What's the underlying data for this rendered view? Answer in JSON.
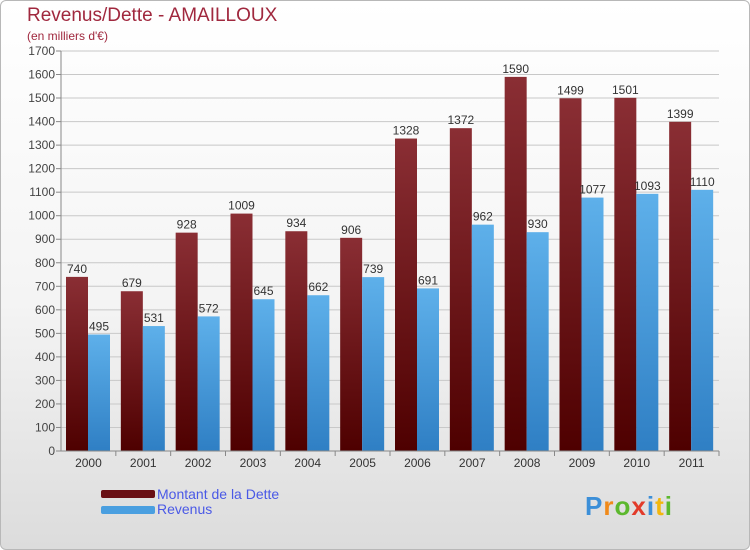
{
  "title": "Revenus/Dette - AMAILLOUX",
  "subtitle": "(en milliers d'€)",
  "legend": {
    "debt_label": "Montant de la Dette",
    "revenue_label": "Revenus"
  },
  "logo": {
    "text": "Proxiti",
    "letters": [
      "P",
      "r",
      "o",
      "x",
      "i",
      "t",
      "i"
    ]
  },
  "colors": {
    "debt_top": "#8a2e34",
    "debt_bottom": "#4e0000",
    "revenue_top": "#5eb0ea",
    "revenue_bottom": "#2f7fc4",
    "title": "#a0283e",
    "legend_text": "#4a59e6",
    "grid": "#c8c8c8"
  },
  "chart_data": {
    "type": "bar",
    "categories": [
      "2000",
      "2001",
      "2002",
      "2003",
      "2004",
      "2005",
      "2006",
      "2007",
      "2008",
      "2009",
      "2010",
      "2011"
    ],
    "series": [
      {
        "name": "Montant de la Dette",
        "values": [
          740,
          679,
          928,
          1009,
          934,
          906,
          1328,
          1372,
          1590,
          1499,
          1501,
          1399
        ]
      },
      {
        "name": "Revenus",
        "values": [
          495,
          531,
          572,
          645,
          662,
          739,
          691,
          962,
          930,
          1077,
          1093,
          1110
        ]
      }
    ],
    "title": "Revenus/Dette - AMAILLOUX",
    "ylim": [
      0,
      1700
    ],
    "ytick_step": 100,
    "grid": true
  }
}
